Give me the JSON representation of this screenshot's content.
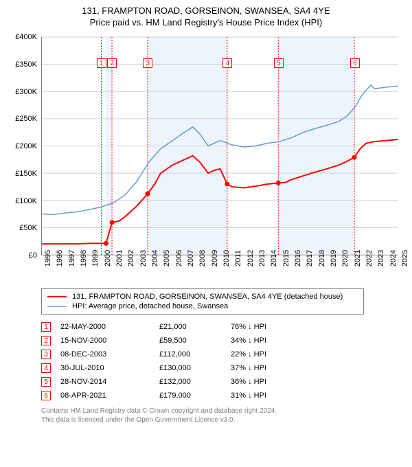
{
  "title": {
    "line1": "131, FRAMPTON ROAD, GORSEINON, SWANSEA, SA4 4YE",
    "line2": "Price paid vs. HM Land Registry's House Price Index (HPI)"
  },
  "chart": {
    "type": "line",
    "background_color": "#ffffff",
    "grid_color": "#d0d0d0",
    "shade_color": "#eaf2fb",
    "ylim": [
      0,
      400000
    ],
    "ytick_step": 50000,
    "yticks": [
      "£0",
      "£50K",
      "£100K",
      "£150K",
      "£200K",
      "£250K",
      "£300K",
      "£350K",
      "£400K"
    ],
    "xlim": [
      1995,
      2025
    ],
    "xticks": [
      1995,
      1996,
      1997,
      1998,
      1999,
      2000,
      2001,
      2002,
      2003,
      2004,
      2005,
      2006,
      2007,
      2008,
      2009,
      2010,
      2011,
      2012,
      2013,
      2014,
      2015,
      2016,
      2017,
      2018,
      2019,
      2020,
      2021,
      2022,
      2023,
      2024,
      2025
    ],
    "shaded_ranges": [
      [
        2000.4,
        2000.9
      ],
      [
        2003.9,
        2010.6
      ],
      [
        2014.9,
        2021.3
      ]
    ],
    "series": [
      {
        "name": "131, FRAMPTON ROAD, GORSEINON, SWANSEA, SA4 4YE (detached house)",
        "color": "#ff0000",
        "line_width": 2,
        "points": [
          [
            1995,
            20000
          ],
          [
            1998,
            20000
          ],
          [
            1999,
            21000
          ],
          [
            2000.4,
            21000
          ],
          [
            2000.9,
            59500
          ],
          [
            2001.5,
            62000
          ],
          [
            2002,
            70000
          ],
          [
            2003,
            90000
          ],
          [
            2003.9,
            112000
          ],
          [
            2004.5,
            130000
          ],
          [
            2005,
            150000
          ],
          [
            2006,
            165000
          ],
          [
            2007,
            175000
          ],
          [
            2007.7,
            182000
          ],
          [
            2008.3,
            170000
          ],
          [
            2009,
            150000
          ],
          [
            2009.5,
            155000
          ],
          [
            2010,
            158000
          ],
          [
            2010.6,
            130000
          ],
          [
            2011,
            125000
          ],
          [
            2012,
            123000
          ],
          [
            2013,
            126000
          ],
          [
            2014,
            130000
          ],
          [
            2014.9,
            132000
          ],
          [
            2015.5,
            133000
          ],
          [
            2016,
            138000
          ],
          [
            2017,
            145000
          ],
          [
            2018,
            152000
          ],
          [
            2019,
            158000
          ],
          [
            2020,
            165000
          ],
          [
            2020.7,
            172000
          ],
          [
            2021.3,
            179000
          ],
          [
            2021.8,
            195000
          ],
          [
            2022.3,
            205000
          ],
          [
            2023,
            208000
          ],
          [
            2024,
            210000
          ],
          [
            2025,
            212000
          ]
        ],
        "markers": [
          {
            "n": "1",
            "x": 2000.4,
            "y": 21000
          },
          {
            "n": "2",
            "x": 2000.9,
            "y": 59500
          },
          {
            "n": "3",
            "x": 2003.9,
            "y": 112000
          },
          {
            "n": "4",
            "x": 2010.6,
            "y": 130000
          },
          {
            "n": "5",
            "x": 2014.9,
            "y": 132000
          },
          {
            "n": "6",
            "x": 2021.3,
            "y": 179000
          }
        ]
      },
      {
        "name": "HPI: Average price, detached house, Swansea",
        "color": "#6b9bd1",
        "line_width": 1.5,
        "points": [
          [
            1995,
            75000
          ],
          [
            1996,
            74000
          ],
          [
            1997,
            77000
          ],
          [
            1998,
            79000
          ],
          [
            1999,
            83000
          ],
          [
            2000,
            88000
          ],
          [
            2001,
            95000
          ],
          [
            2002,
            110000
          ],
          [
            2003,
            135000
          ],
          [
            2004,
            170000
          ],
          [
            2005,
            195000
          ],
          [
            2006,
            210000
          ],
          [
            2007,
            225000
          ],
          [
            2007.7,
            235000
          ],
          [
            2008.3,
            222000
          ],
          [
            2009,
            200000
          ],
          [
            2009.5,
            205000
          ],
          [
            2010,
            210000
          ],
          [
            2011,
            202000
          ],
          [
            2012,
            198000
          ],
          [
            2013,
            200000
          ],
          [
            2014,
            205000
          ],
          [
            2015,
            208000
          ],
          [
            2016,
            215000
          ],
          [
            2017,
            225000
          ],
          [
            2018,
            232000
          ],
          [
            2019,
            238000
          ],
          [
            2020,
            245000
          ],
          [
            2020.7,
            255000
          ],
          [
            2021.3,
            270000
          ],
          [
            2022,
            295000
          ],
          [
            2022.7,
            312000
          ],
          [
            2023,
            305000
          ],
          [
            2024,
            308000
          ],
          [
            2025,
            310000
          ]
        ]
      }
    ],
    "chart_markers": [
      {
        "n": "1",
        "x": 2000.0,
        "label_y": 352000
      },
      {
        "n": "2",
        "x": 2000.9,
        "label_y": 352000
      },
      {
        "n": "3",
        "x": 2003.9,
        "label_y": 352000
      },
      {
        "n": "4",
        "x": 2010.6,
        "label_y": 352000
      },
      {
        "n": "5",
        "x": 2014.9,
        "label_y": 352000
      },
      {
        "n": "6",
        "x": 2021.3,
        "label_y": 352000
      }
    ]
  },
  "legend": {
    "items": [
      {
        "color": "#ff0000",
        "width": 2,
        "label": "131, FRAMPTON ROAD, GORSEINON, SWANSEA, SA4 4YE (detached house)"
      },
      {
        "color": "#6b9bd1",
        "width": 1.5,
        "label": "HPI: Average price, detached house, Swansea"
      }
    ]
  },
  "transactions": [
    {
      "n": "1",
      "date": "22-MAY-2000",
      "price": "£21,000",
      "delta": "76% ↓ HPI"
    },
    {
      "n": "2",
      "date": "15-NOV-2000",
      "price": "£59,500",
      "delta": "34% ↓ HPI"
    },
    {
      "n": "3",
      "date": "08-DEC-2003",
      "price": "£112,000",
      "delta": "22% ↓ HPI"
    },
    {
      "n": "4",
      "date": "30-JUL-2010",
      "price": "£130,000",
      "delta": "37% ↓ HPI"
    },
    {
      "n": "5",
      "date": "28-NOV-2014",
      "price": "£132,000",
      "delta": "36% ↓ HPI"
    },
    {
      "n": "6",
      "date": "08-APR-2021",
      "price": "£179,000",
      "delta": "31% ↓ HPI"
    }
  ],
  "footer": {
    "line1": "Contains HM Land Registry data © Crown copyright and database right 2024.",
    "line2": "This data is licensed under the Open Government Licence v3.0."
  }
}
